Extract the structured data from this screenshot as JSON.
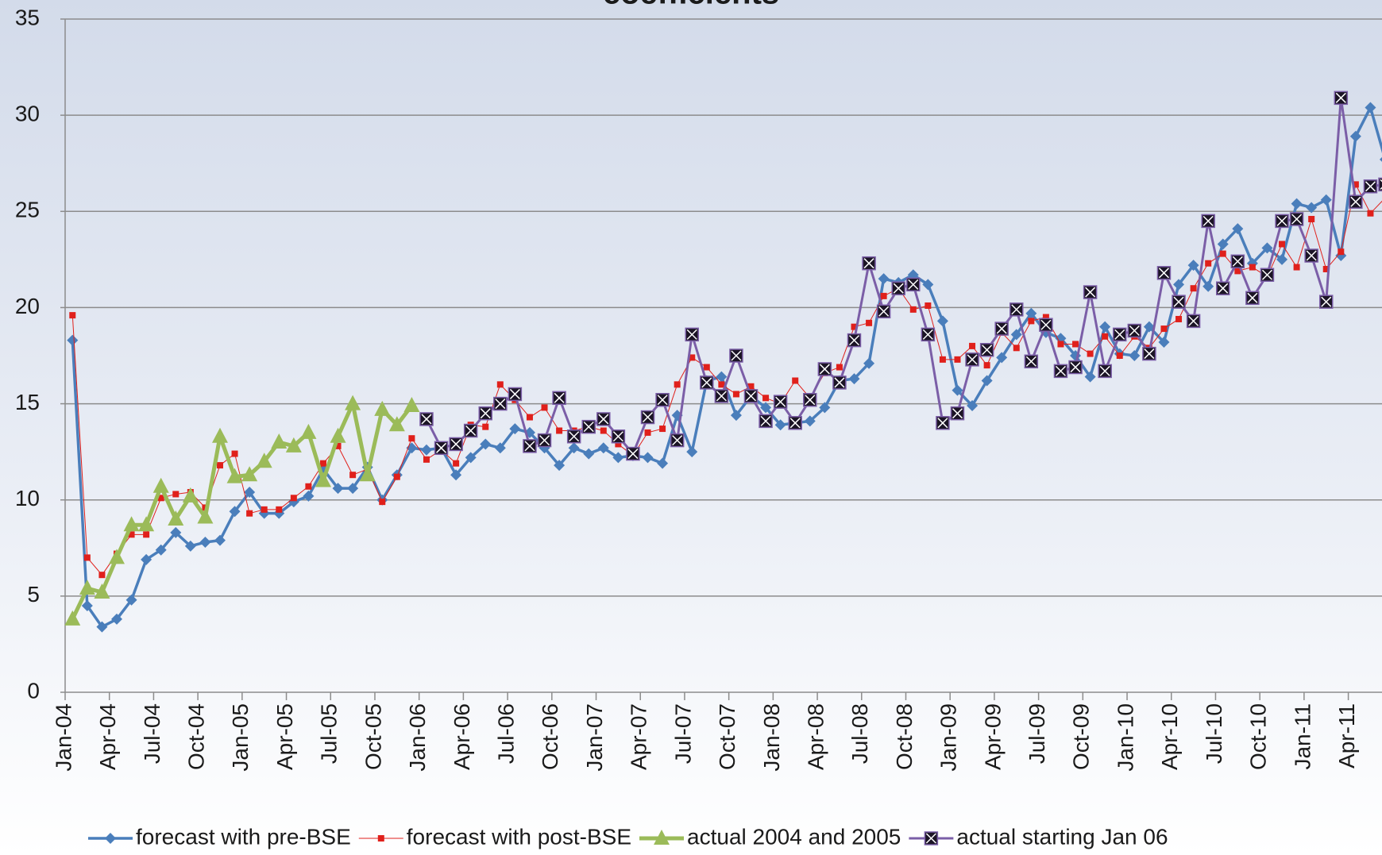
{
  "chart_data": {
    "type": "line",
    "title": "coefficients",
    "categories": [
      "Jan-04",
      null,
      null,
      "Apr-04",
      null,
      null,
      "Jul-04",
      null,
      null,
      "Oct-04",
      null,
      null,
      "Jan-05",
      null,
      null,
      "Apr-05",
      null,
      null,
      "Jul-05",
      null,
      null,
      "Oct-05",
      null,
      null,
      "Jan-06",
      null,
      null,
      "Apr-06",
      null,
      null,
      "Jul-06",
      null,
      null,
      "Oct-06",
      null,
      null,
      "Jan-07",
      null,
      null,
      "Apr-07",
      null,
      null,
      "Jul-07",
      null,
      null,
      "Oct-07",
      null,
      null,
      "Jan-08",
      null,
      null,
      "Apr-08",
      null,
      null,
      "Jul-08",
      null,
      null,
      "Oct-08",
      null,
      null,
      "Jan-09",
      null,
      null,
      "Apr-09",
      null,
      null,
      "Jul-09",
      null,
      null,
      "Oct-09",
      null,
      null,
      "Jan-10",
      null,
      null,
      "Apr-10",
      null,
      null,
      "Jul-10",
      null,
      null,
      "Oct-10",
      null,
      null,
      "Jan-11",
      null,
      null,
      "Apr-11",
      null,
      null
    ],
    "series": [
      {
        "name": "forecast with pre-BSE",
        "color": "#4a7ebb",
        "values": [
          18.3,
          4.5,
          3.4,
          3.8,
          4.8,
          6.9,
          7.4,
          8.3,
          7.6,
          7.8,
          7.9,
          9.4,
          10.4,
          9.3,
          9.3,
          9.9,
          10.2,
          11.6,
          10.6,
          10.6,
          11.7,
          10.0,
          11.3,
          12.7,
          12.6,
          12.7,
          11.3,
          12.2,
          12.9,
          12.7,
          13.7,
          13.5,
          12.7,
          11.8,
          12.7,
          12.4,
          12.7,
          12.2,
          12.3,
          12.2,
          11.9,
          14.4,
          12.5,
          16.2,
          16.4,
          14.4,
          15.4,
          14.8,
          13.9,
          14.0,
          14.1,
          14.8,
          16.2,
          16.3,
          17.1,
          21.5,
          21.3,
          21.7,
          21.2,
          19.3,
          15.7,
          14.9,
          16.2,
          17.4,
          18.6,
          19.7,
          18.7,
          18.4,
          17.5,
          16.4,
          19.0,
          17.6,
          17.5,
          19.0,
          18.2,
          21.2,
          22.2,
          21.1,
          23.3,
          24.1,
          22.3,
          23.1,
          22.5,
          25.4,
          25.2,
          25.6,
          22.7,
          28.9,
          30.4,
          27.7
        ]
      },
      {
        "name": "forecast with post-BSE",
        "color": "#e0201b",
        "values": [
          19.6,
          7.0,
          6.1,
          7.2,
          8.2,
          8.2,
          10.1,
          10.3,
          10.4,
          9.6,
          11.8,
          12.4,
          9.3,
          9.5,
          9.5,
          10.1,
          10.7,
          11.9,
          12.8,
          11.3,
          11.6,
          9.9,
          11.2,
          13.2,
          12.1,
          12.6,
          11.9,
          13.9,
          13.8,
          16.0,
          15.2,
          14.3,
          14.8,
          13.6,
          13.6,
          13.8,
          13.6,
          12.9,
          12.3,
          13.5,
          13.7,
          16.0,
          17.4,
          16.9,
          16.0,
          15.5,
          15.9,
          15.3,
          15.0,
          16.2,
          15.3,
          16.6,
          16.9,
          19.0,
          19.2,
          20.6,
          21.0,
          19.9,
          20.1,
          17.3,
          17.3,
          18.0,
          17.0,
          18.7,
          17.9,
          19.3,
          19.5,
          18.1,
          18.1,
          17.6,
          18.5,
          17.5,
          18.5,
          17.9,
          18.9,
          19.4,
          21.0,
          22.3,
          22.8,
          21.9,
          22.1,
          21.6,
          23.3,
          22.1,
          24.6,
          22.0,
          22.9,
          26.4,
          24.9,
          25.7
        ]
      },
      {
        "name": "actual 2004 and 2005",
        "color": "#9bbb59",
        "values": [
          3.8,
          5.4,
          5.2,
          7.0,
          8.7,
          8.7,
          10.7,
          9.0,
          10.2,
          9.1,
          13.3,
          11.2,
          11.3,
          12.0,
          13.0,
          12.8,
          13.5,
          11.0,
          13.3,
          15.0,
          11.3,
          14.7,
          13.9,
          14.9,
          null,
          null,
          null,
          null,
          null,
          null,
          null,
          null,
          null,
          null,
          null,
          null,
          null,
          null,
          null,
          null,
          null,
          null,
          null,
          null,
          null,
          null,
          null,
          null,
          null,
          null,
          null,
          null,
          null,
          null,
          null,
          null,
          null,
          null,
          null,
          null,
          null,
          null,
          null,
          null,
          null,
          null,
          null,
          null,
          null,
          null,
          null,
          null,
          null,
          null,
          null,
          null,
          null,
          null,
          null,
          null,
          null,
          null,
          null,
          null,
          null,
          null,
          null,
          null,
          null,
          null
        ]
      },
      {
        "name": "actual starting Jan 06",
        "color": "#7b5ea7",
        "values": [
          null,
          null,
          null,
          null,
          null,
          null,
          null,
          null,
          null,
          null,
          null,
          null,
          null,
          null,
          null,
          null,
          null,
          null,
          null,
          null,
          null,
          null,
          null,
          null,
          14.2,
          12.7,
          12.9,
          13.6,
          14.5,
          15.0,
          15.5,
          12.8,
          13.1,
          15.3,
          13.3,
          13.8,
          14.2,
          13.3,
          12.4,
          14.3,
          15.2,
          13.1,
          18.6,
          16.1,
          15.4,
          17.5,
          15.4,
          14.1,
          15.1,
          14.0,
          15.2,
          16.8,
          16.1,
          18.3,
          22.3,
          19.8,
          21.0,
          21.2,
          18.6,
          14.0,
          14.5,
          17.3,
          17.8,
          18.9,
          19.9,
          17.2,
          19.1,
          16.7,
          16.9,
          20.8,
          16.7,
          18.6,
          18.8,
          17.6,
          21.8,
          20.3,
          19.3,
          24.5,
          21.0,
          22.4,
          20.5,
          21.7,
          24.5,
          24.6,
          22.7,
          20.3,
          30.9,
          25.5,
          26.3,
          26.4
        ]
      }
    ],
    "ylim": [
      0,
      35
    ],
    "yticks": [
      0,
      5,
      10,
      15,
      20,
      25,
      30,
      35
    ],
    "grid": true,
    "legend": "bottom"
  }
}
